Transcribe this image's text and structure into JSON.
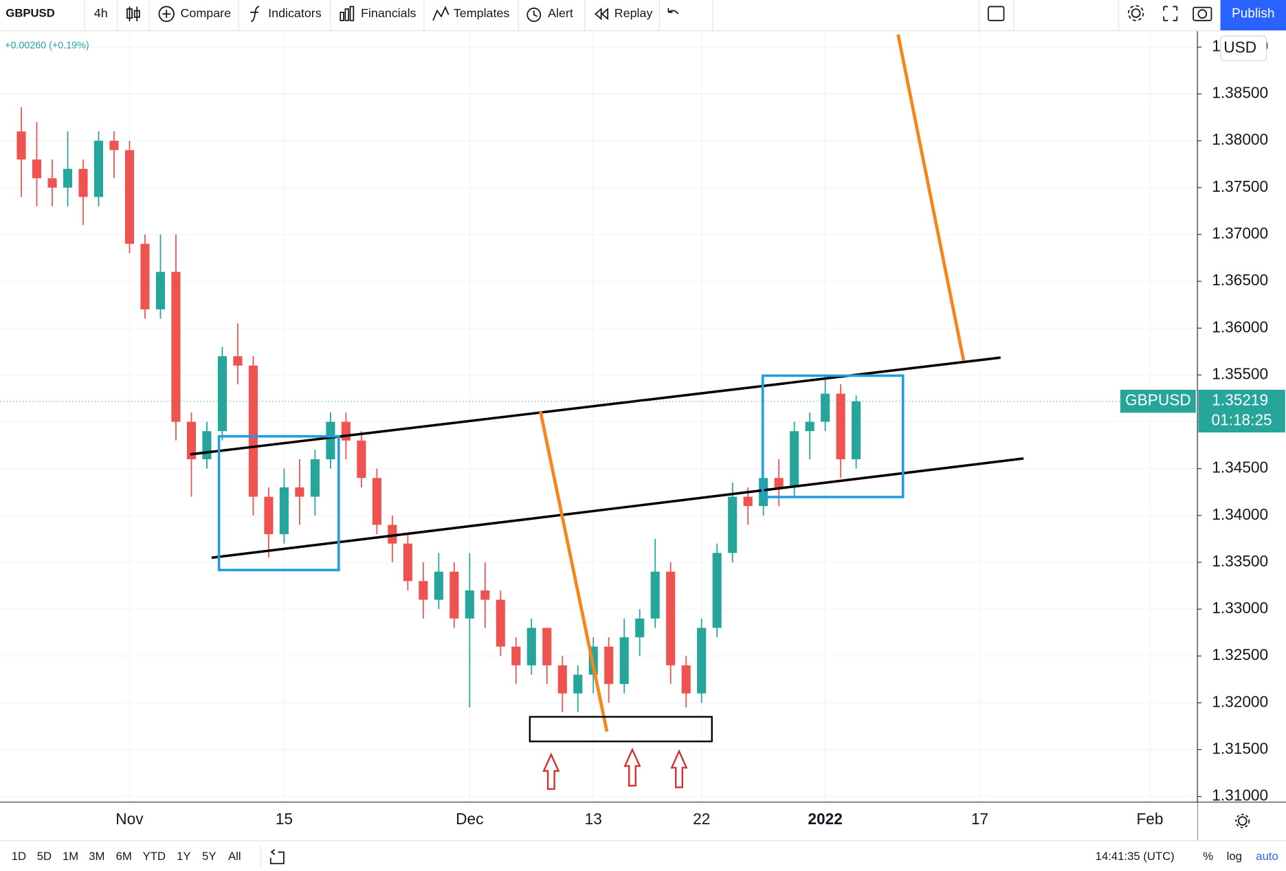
{
  "toolbar": {
    "symbol": "GBPUSD",
    "interval": "4h",
    "compare": "Compare",
    "indicators": "Indicators",
    "financials": "Financials",
    "templates": "Templates",
    "alert": "Alert",
    "replay": "Replay",
    "publish": "Publish"
  },
  "bottom_bar": {
    "ranges": [
      "1D",
      "5D",
      "1M",
      "3M",
      "6M",
      "YTD",
      "1Y",
      "5Y",
      "All"
    ],
    "clock": "14:41:35 (UTC)",
    "percent": "%",
    "log": "log",
    "auto": "auto"
  },
  "chart_data": {
    "type": "candlestick",
    "name": "GBPUSD",
    "change": "+0.00260 (+0.19%)",
    "currency": "USD",
    "categories": [
      null,
      null,
      null,
      null,
      null,
      null,
      null,
      "Nov",
      null,
      null,
      null,
      null,
      null,
      null,
      null,
      null,
      null,
      "15",
      null,
      null,
      null,
      null,
      null,
      null,
      null,
      null,
      null,
      null,
      null,
      "Dec",
      null,
      null,
      null,
      null,
      null,
      null,
      null,
      "13",
      null,
      null,
      null,
      null,
      null,
      null,
      "22",
      null,
      null,
      null,
      null,
      null,
      null,
      null,
      "2022",
      null,
      null,
      null,
      null,
      null,
      null,
      null,
      null,
      null,
      "17",
      null,
      null,
      null,
      null,
      null,
      null,
      null,
      null,
      null,
      null,
      "Feb",
      null,
      null
    ],
    "open": [
      1.381,
      1.378,
      1.376,
      1.375,
      1.377,
      1.374,
      1.38,
      1.379,
      1.369,
      1.362,
      1.366,
      1.35,
      1.346,
      1.349,
      1.357,
      1.356,
      1.342,
      1.338,
      1.343,
      1.342,
      1.346,
      1.35,
      1.348,
      1.344,
      1.339,
      1.337,
      1.333,
      1.331,
      1.334,
      1.329,
      1.332,
      1.331,
      1.326,
      1.324,
      1.328,
      1.324,
      1.321,
      1.323,
      1.326,
      1.322,
      1.327,
      1.329,
      1.334,
      1.324,
      1.321,
      1.328,
      1.336,
      1.342,
      1.341,
      1.344,
      1.343,
      1.349,
      1.35,
      1.353,
      1.346,
      null,
      null,
      null,
      null,
      null,
      null,
      null,
      null,
      null,
      null,
      null,
      null,
      null,
      null,
      null,
      null,
      null,
      null,
      null,
      null,
      null
    ],
    "high": [
      1.3836,
      1.382,
      1.378,
      1.381,
      1.378,
      1.381,
      1.381,
      1.38,
      1.37,
      1.37,
      1.37,
      1.351,
      1.35,
      1.358,
      1.3605,
      1.357,
      1.343,
      1.345,
      1.346,
      1.347,
      1.351,
      1.351,
      1.349,
      1.345,
      1.34,
      1.338,
      1.335,
      1.336,
      1.335,
      1.336,
      1.335,
      1.332,
      1.327,
      1.329,
      1.328,
      1.325,
      1.324,
      1.327,
      1.327,
      1.329,
      1.33,
      1.3375,
      1.335,
      1.325,
      1.329,
      1.337,
      1.3435,
      1.343,
      1.345,
      1.346,
      1.35,
      1.351,
      1.355,
      1.354,
      1.3528,
      null,
      null,
      null,
      null,
      null,
      null,
      null,
      null,
      null,
      null,
      null,
      null,
      null,
      null,
      null,
      null,
      null,
      null,
      null,
      null,
      null
    ],
    "low": [
      1.374,
      1.373,
      1.373,
      1.373,
      1.371,
      1.373,
      1.376,
      1.368,
      1.361,
      1.361,
      1.348,
      1.342,
      1.345,
      1.348,
      1.354,
      1.34,
      1.3355,
      1.337,
      1.339,
      1.34,
      1.345,
      1.346,
      1.343,
      1.338,
      1.335,
      1.332,
      1.329,
      1.33,
      1.328,
      1.3195,
      1.328,
      1.325,
      1.322,
      1.323,
      1.322,
      1.319,
      1.319,
      1.321,
      1.32,
      1.321,
      1.325,
      1.328,
      1.322,
      1.3195,
      1.32,
      1.327,
      1.335,
      1.339,
      1.34,
      1.341,
      1.342,
      1.346,
      1.349,
      1.344,
      1.345,
      null,
      null,
      null,
      null,
      null,
      null,
      null,
      null,
      null,
      null,
      null,
      null,
      null,
      null,
      null,
      null,
      null,
      null,
      null,
      null,
      null
    ],
    "close": [
      1.378,
      1.376,
      1.375,
      1.377,
      1.374,
      1.38,
      1.379,
      1.369,
      1.362,
      1.366,
      1.35,
      1.346,
      1.349,
      1.357,
      1.356,
      1.342,
      1.338,
      1.343,
      1.342,
      1.346,
      1.35,
      1.348,
      1.344,
      1.339,
      1.337,
      1.333,
      1.331,
      1.334,
      1.329,
      1.332,
      1.331,
      1.326,
      1.324,
      1.328,
      1.324,
      1.321,
      1.323,
      1.326,
      1.322,
      1.327,
      1.329,
      1.334,
      1.324,
      1.321,
      1.328,
      1.336,
      1.342,
      1.341,
      1.344,
      1.343,
      1.349,
      1.35,
      1.353,
      1.346,
      1.35219,
      null,
      null,
      null,
      null,
      null,
      null,
      null,
      null,
      null,
      null,
      null,
      null,
      null,
      null,
      null,
      null,
      null,
      null,
      null,
      null,
      null
    ],
    "up_color": "#26a69a",
    "down_color": "#ef5350",
    "ylim": [
      1.3094,
      1.3917
    ],
    "yticks": [
      {
        "value": 1.31,
        "label": "1.31000"
      },
      {
        "value": 1.315,
        "label": "1.31500"
      },
      {
        "value": 1.32,
        "label": "1.32000"
      },
      {
        "value": 1.325,
        "label": "1.32500"
      },
      {
        "value": 1.33,
        "label": "1.33000"
      },
      {
        "value": 1.335,
        "label": "1.33500"
      },
      {
        "value": 1.34,
        "label": "1.34000"
      },
      {
        "value": 1.345,
        "label": "1.34500"
      },
      {
        "value": 1.35,
        "label": "1.35000"
      },
      {
        "value": 1.355,
        "label": "1.35500"
      },
      {
        "value": 1.36,
        "label": "1.36000"
      },
      {
        "value": 1.365,
        "label": "1.36500"
      },
      {
        "value": 1.37,
        "label": "1.37000"
      },
      {
        "value": 1.375,
        "label": "1.37500"
      },
      {
        "value": 1.38,
        "label": "1.38000"
      },
      {
        "value": 1.385,
        "label": "1.38500"
      },
      {
        "value": 1.39,
        "label": "1.39000"
      }
    ],
    "last_price": 1.35219,
    "countdown": "01:18:25",
    "grid": true
  }
}
